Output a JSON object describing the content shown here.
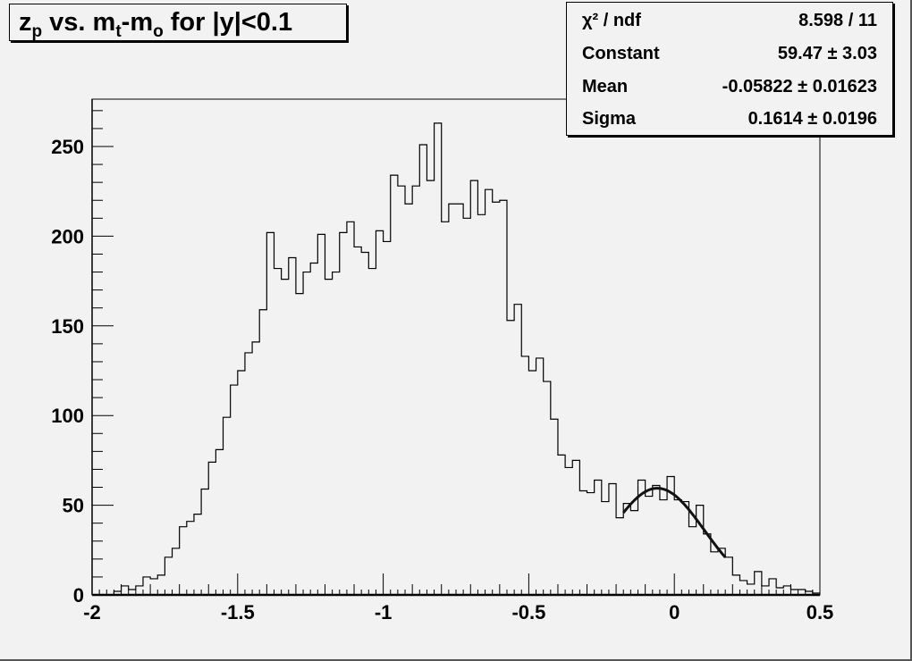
{
  "chart_data": {
    "type": "bar",
    "style": "step-histogram",
    "title_segments": [
      {
        "text": "z",
        "sub": false
      },
      {
        "text": "p",
        "sub": true
      },
      {
        "text": " vs. m",
        "sub": false
      },
      {
        "text": "t",
        "sub": true
      },
      {
        "text": "-m",
        "sub": false
      },
      {
        "text": "o",
        "sub": true
      },
      {
        "text": " for |y|<0.1",
        "sub": false
      }
    ],
    "xlim": [
      -2,
      0.5
    ],
    "ylim": [
      0,
      275
    ],
    "bin_width": 0.025,
    "x_ticks": [
      "-2",
      "-1.5",
      "-1",
      "-0.5",
      "0",
      "0.5"
    ],
    "x_tick_values": [
      -2,
      -1.5,
      -1,
      -0.5,
      0,
      0.5
    ],
    "y_ticks": [
      "0",
      "50",
      "100",
      "150",
      "200",
      "250"
    ],
    "y_tick_values": [
      0,
      50,
      100,
      150,
      200,
      250
    ],
    "xlabel": "",
    "ylabel": "",
    "grid": false,
    "values": [
      0,
      0,
      0,
      2,
      5,
      3,
      5,
      10,
      9,
      11,
      21,
      26,
      38,
      41,
      45,
      59,
      74,
      81,
      99,
      117,
      125,
      135,
      141,
      159,
      202,
      182,
      176,
      188,
      168,
      180,
      185,
      201,
      176,
      180,
      202,
      208,
      194,
      191,
      182,
      203,
      197,
      234,
      228,
      218,
      228,
      251,
      231,
      263,
      208,
      218,
      218,
      210,
      231,
      212,
      226,
      219,
      220,
      153,
      162,
      133,
      125,
      132,
      119,
      98,
      78,
      71,
      75,
      58,
      57,
      64,
      52,
      62,
      43,
      51,
      47,
      64,
      55,
      61,
      53,
      66,
      53,
      52,
      38,
      50,
      34,
      24,
      26,
      21,
      11,
      8,
      6,
      13,
      5,
      9,
      4,
      5,
      3,
      3,
      2,
      1
    ],
    "fit": {
      "function": "gaus",
      "constant": 59.47,
      "mean": -0.05822,
      "sigma": 0.1614,
      "range": [
        -0.175,
        0.175
      ]
    },
    "legend_placement": "top-right",
    "stats": [
      {
        "label": "χ² / ndf",
        "value": "8.598 / 11"
      },
      {
        "label": "Constant",
        "value": "59.47 ± 3.03"
      },
      {
        "label": "Mean",
        "value": "-0.05822 ± 0.01623"
      },
      {
        "label": "Sigma",
        "value": "0.1614 ± 0.0196"
      }
    ]
  }
}
